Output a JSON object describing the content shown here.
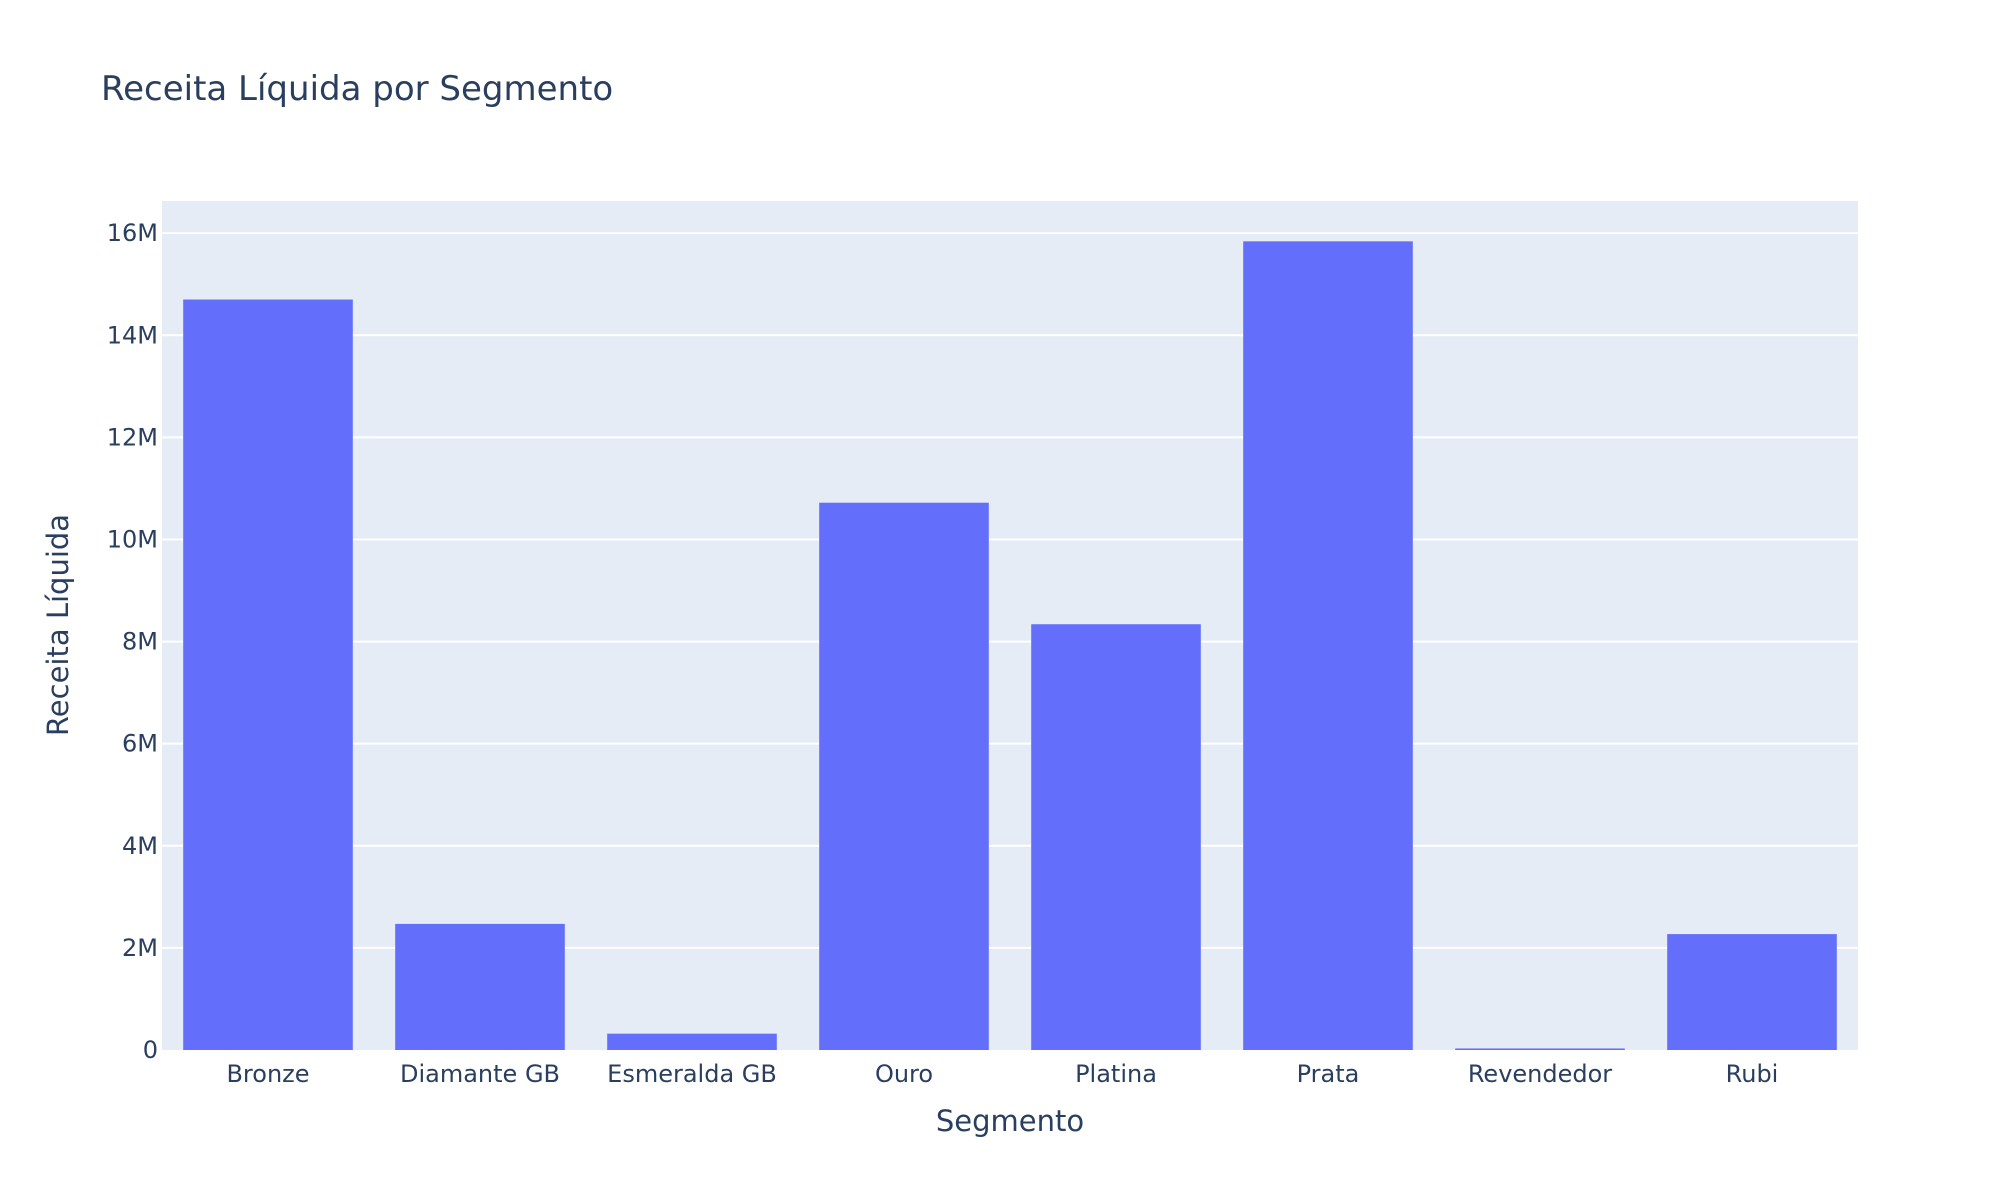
{
  "chart_data": {
    "type": "bar",
    "title": "Receita Líquida por Segmento",
    "xlabel": "Segmento",
    "ylabel": "Receita Líquida",
    "categories": [
      "Bronze",
      "Diamante GB",
      "Esmeralda GB",
      "Ouro",
      "Platina",
      "Prata",
      "Revendedor",
      "Rubi"
    ],
    "values": [
      14700000,
      2470000,
      320000,
      10720000,
      8340000,
      15840000,
      30000,
      2270000
    ],
    "ylim": [
      0,
      16630000
    ],
    "yticks": [
      0,
      2000000,
      4000000,
      6000000,
      8000000,
      10000000,
      12000000,
      14000000,
      16000000
    ],
    "ytick_labels": [
      "0",
      "2M",
      "4M",
      "6M",
      "8M",
      "10M",
      "12M",
      "14M",
      "16M"
    ],
    "grid": true,
    "colors": {
      "bar": "#636efa",
      "plot_bg": "#e5ecf6",
      "text": "#2a3f5f"
    }
  }
}
